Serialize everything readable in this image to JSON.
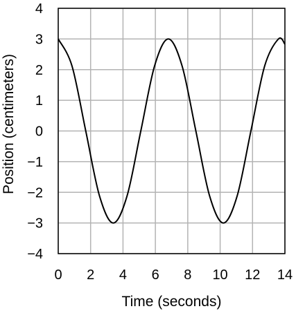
{
  "chart_data": {
    "type": "line",
    "title": "",
    "xlabel": "Time (seconds)",
    "ylabel": "Position (centimeters)",
    "xlim": [
      0,
      14
    ],
    "ylim": [
      -4,
      4
    ],
    "x_ticks": [
      0,
      2,
      4,
      6,
      8,
      10,
      12,
      14
    ],
    "y_ticks": [
      4,
      3,
      2,
      1,
      0,
      -1,
      -2,
      -3,
      -4
    ],
    "x_tick_labels": [
      "0",
      "2",
      "4",
      "6",
      "8",
      "10",
      "12",
      "14"
    ],
    "y_tick_labels": [
      "4",
      "3",
      "2",
      "1",
      "0",
      "−1",
      "−2",
      "−3",
      "−4"
    ],
    "grid": true,
    "legend": "none",
    "series": [
      {
        "x": [
          0,
          0.85,
          1.7,
          2.55,
          3.4,
          4.25,
          5.1,
          5.95,
          6.8,
          7.65,
          8.5,
          9.35,
          10.2,
          11.05,
          11.9,
          12.75,
          13.6,
          14
        ],
        "values": [
          3,
          2.12,
          0,
          -2.12,
          -3,
          -2.12,
          0,
          2.12,
          3,
          2.12,
          0,
          -2.12,
          -3,
          -2.12,
          0,
          2.12,
          3,
          2.83
        ]
      }
    ],
    "colors": {
      "line": "#000000",
      "grid": "#b3b3b3",
      "frame": "#000000"
    }
  }
}
